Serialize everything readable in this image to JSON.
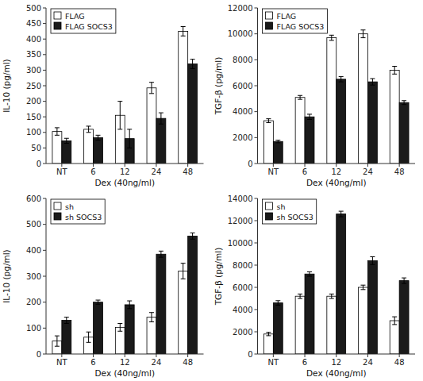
{
  "chart_data": [
    {
      "type": "bar",
      "categories": [
        "NT",
        "6",
        "12",
        "24",
        "48"
      ],
      "series": [
        {
          "name": "FLAG",
          "color": "#ffffff",
          "values": [
            103,
            110,
            155,
            243,
            425
          ],
          "errors": [
            12,
            10,
            45,
            18,
            15
          ]
        },
        {
          "name": "FLAG SOCS3",
          "color": "#1a1a1a",
          "values": [
            73,
            83,
            80,
            145,
            320
          ],
          "errors": [
            8,
            8,
            30,
            18,
            15
          ]
        }
      ],
      "xlabel": "Dex (40ng/ml)",
      "ylabel": "IL-10 (pg/ml)",
      "ylim": [
        0,
        500
      ],
      "yticks": [
        0,
        50,
        100,
        150,
        200,
        250,
        300,
        350,
        400,
        450,
        500
      ],
      "legend": "upper left",
      "grid": false
    },
    {
      "type": "bar",
      "categories": [
        "NT",
        "6",
        "12",
        "24",
        "48"
      ],
      "series": [
        {
          "name": "FLAG",
          "color": "#ffffff",
          "values": [
            3300,
            5100,
            9700,
            10000,
            7200
          ],
          "errors": [
            150,
            150,
            200,
            300,
            300
          ]
        },
        {
          "name": "FLAG SOCS3",
          "color": "#1a1a1a",
          "values": [
            1700,
            3600,
            6500,
            6300,
            4700
          ],
          "errors": [
            100,
            200,
            200,
            250,
            150
          ]
        }
      ],
      "xlabel": "Dex (40ng/ml)",
      "ylabel": "TGF-β (pg/ml)",
      "ylim": [
        0,
        12000
      ],
      "yticks": [
        0,
        2000,
        4000,
        6000,
        8000,
        10000,
        12000
      ],
      "legend": "upper left",
      "grid": false
    },
    {
      "type": "bar",
      "categories": [
        "NT",
        "6",
        "12",
        "24",
        "48"
      ],
      "series": [
        {
          "name": "sh",
          "color": "#ffffff",
          "values": [
            50,
            65,
            103,
            142,
            320
          ],
          "errors": [
            20,
            20,
            15,
            18,
            30
          ]
        },
        {
          "name": "sh SOCS3",
          "color": "#1a1a1a",
          "values": [
            130,
            200,
            190,
            385,
            455
          ],
          "errors": [
            12,
            8,
            15,
            12,
            12
          ]
        }
      ],
      "xlabel": "Dex (40ng/ml)",
      "ylabel": "IL-10 (pg/ml)",
      "ylim": [
        0,
        600
      ],
      "yticks": [
        0,
        100,
        200,
        300,
        400,
        500,
        600
      ],
      "legend": "upper left",
      "grid": false
    },
    {
      "type": "bar",
      "categories": [
        "NT",
        "6",
        "12",
        "24",
        "48"
      ],
      "series": [
        {
          "name": "sh",
          "color": "#ffffff",
          "values": [
            1800,
            5200,
            5200,
            6000,
            3000
          ],
          "errors": [
            150,
            200,
            200,
            200,
            350
          ]
        },
        {
          "name": "sh SOCS3",
          "color": "#1a1a1a",
          "values": [
            4600,
            7200,
            12600,
            8400,
            6600
          ],
          "errors": [
            200,
            200,
            250,
            350,
            250
          ]
        }
      ],
      "xlabel": "Dex (40ng/ml)",
      "ylabel": "TGF-β (pg/ml)",
      "ylim": [
        0,
        14000
      ],
      "yticks": [
        0,
        2000,
        4000,
        6000,
        8000,
        10000,
        12000,
        14000
      ],
      "legend": "upper left",
      "grid": false
    }
  ]
}
